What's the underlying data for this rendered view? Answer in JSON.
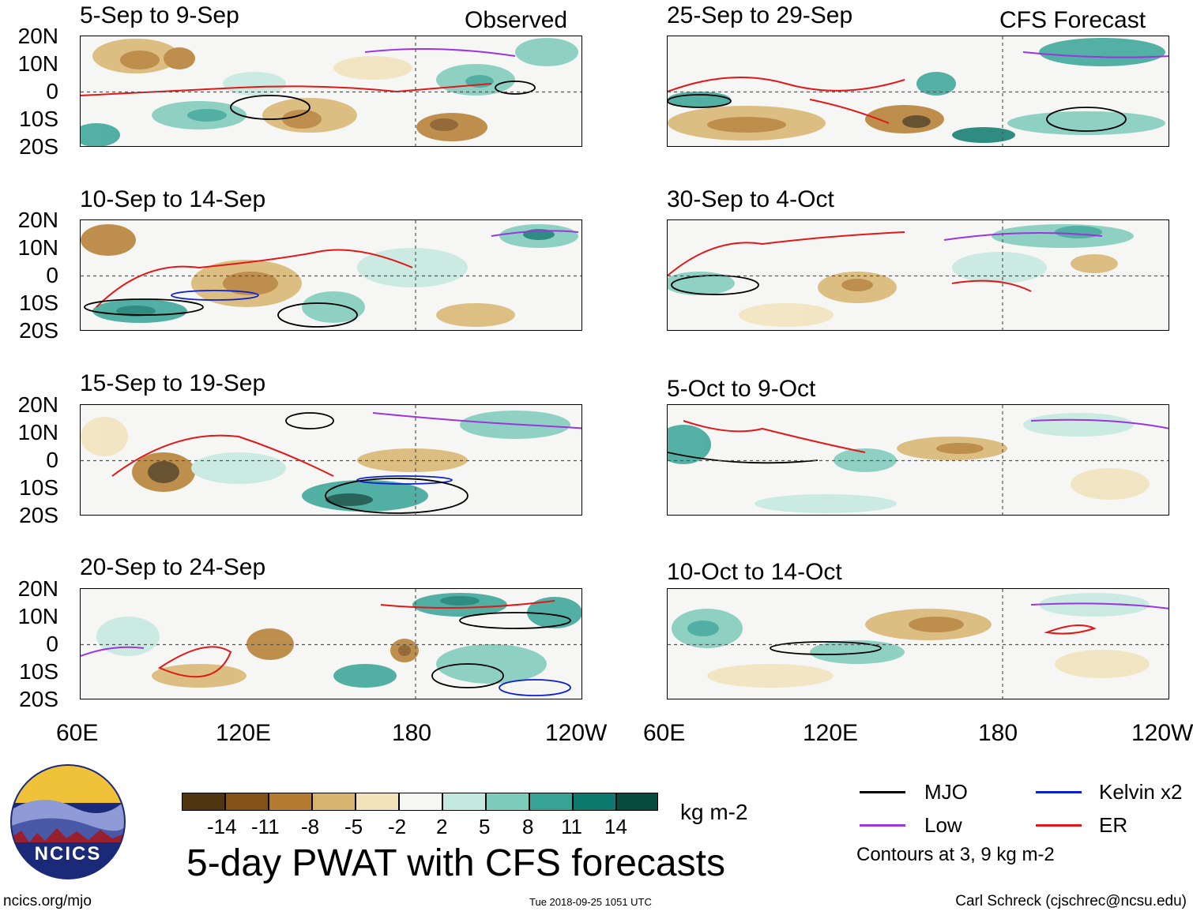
{
  "panels": {
    "left": [
      {
        "title": "5-Sep to 9-Sep",
        "label": "Observed"
      },
      {
        "title": "10-Sep to 14-Sep",
        "label": ""
      },
      {
        "title": "15-Sep to 19-Sep",
        "label": ""
      },
      {
        "title": "20-Sep to 24-Sep",
        "label": ""
      }
    ],
    "right": [
      {
        "title": "25-Sep to 29-Sep",
        "label": "CFS Forecast"
      },
      {
        "title": "30-Sep to 4-Oct",
        "label": ""
      },
      {
        "title": "5-Oct to 9-Oct",
        "label": ""
      },
      {
        "title": "10-Oct to 14-Oct",
        "label": ""
      }
    ]
  },
  "axes": {
    "lat_labels": [
      "20N",
      "10N",
      "0",
      "10S",
      "20S"
    ],
    "lon_labels": [
      "60E",
      "120E",
      "180",
      "120W"
    ]
  },
  "colorbar": {
    "colors": [
      "#4f3611",
      "#83521a",
      "#b57c31",
      "#d8b56f",
      "#f2e3bb",
      "#f6f6f4",
      "#c3e8df",
      "#7ccbbb",
      "#36a396",
      "#0c7a6e",
      "#064a40"
    ],
    "labels": [
      "-14",
      "-11",
      "-8",
      "-5",
      "-2",
      "2",
      "5",
      "8",
      "11",
      "14"
    ],
    "units": "kg m-2"
  },
  "legend": {
    "items": [
      {
        "name": "MJO",
        "color": "#000000"
      },
      {
        "name": "Kelvin x2",
        "color": "#0a1fd0"
      },
      {
        "name": "Low",
        "color": "#9a35e0"
      },
      {
        "name": "ER",
        "color": "#e01818"
      }
    ],
    "note": "Contours at 3, 9 kg m-2"
  },
  "logo_text": "NCICS",
  "main_title": "5-day PWAT with CFS forecasts",
  "footer": {
    "website": "ncics.org/mjo",
    "timestamp": "Tue 2018-09-25 1051 UTC",
    "credit": "Carl Schreck (cjschrec@ncsu.edu)"
  }
}
